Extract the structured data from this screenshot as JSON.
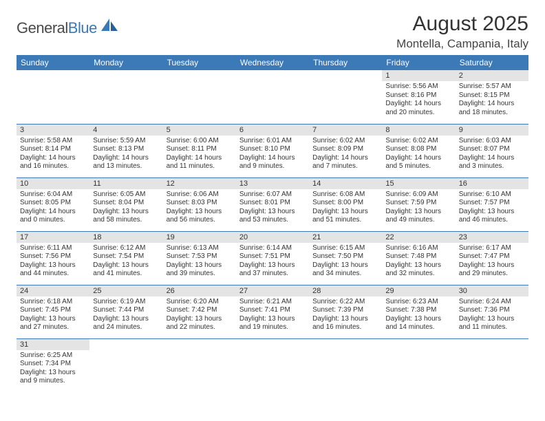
{
  "brand": {
    "part1": "General",
    "part2": "Blue"
  },
  "title": "August 2025",
  "location": "Montella, Campania, Italy",
  "colors": {
    "header_bg": "#3b79b7",
    "header_fg": "#ffffff",
    "daynum_bg": "#e4e4e4",
    "rule": "#3b79b7",
    "text": "#333333",
    "brand_gray": "#4a4a4a",
    "brand_blue": "#3b79b7"
  },
  "day_headers": [
    "Sunday",
    "Monday",
    "Tuesday",
    "Wednesday",
    "Thursday",
    "Friday",
    "Saturday"
  ],
  "weeks": [
    [
      {
        "blank": true
      },
      {
        "blank": true
      },
      {
        "blank": true
      },
      {
        "blank": true
      },
      {
        "blank": true
      },
      {
        "n": "1",
        "sr": "Sunrise: 5:56 AM",
        "ss": "Sunset: 8:16 PM",
        "d1": "Daylight: 14 hours",
        "d2": "and 20 minutes."
      },
      {
        "n": "2",
        "sr": "Sunrise: 5:57 AM",
        "ss": "Sunset: 8:15 PM",
        "d1": "Daylight: 14 hours",
        "d2": "and 18 minutes."
      }
    ],
    [
      {
        "n": "3",
        "sr": "Sunrise: 5:58 AM",
        "ss": "Sunset: 8:14 PM",
        "d1": "Daylight: 14 hours",
        "d2": "and 16 minutes."
      },
      {
        "n": "4",
        "sr": "Sunrise: 5:59 AM",
        "ss": "Sunset: 8:13 PM",
        "d1": "Daylight: 14 hours",
        "d2": "and 13 minutes."
      },
      {
        "n": "5",
        "sr": "Sunrise: 6:00 AM",
        "ss": "Sunset: 8:11 PM",
        "d1": "Daylight: 14 hours",
        "d2": "and 11 minutes."
      },
      {
        "n": "6",
        "sr": "Sunrise: 6:01 AM",
        "ss": "Sunset: 8:10 PM",
        "d1": "Daylight: 14 hours",
        "d2": "and 9 minutes."
      },
      {
        "n": "7",
        "sr": "Sunrise: 6:02 AM",
        "ss": "Sunset: 8:09 PM",
        "d1": "Daylight: 14 hours",
        "d2": "and 7 minutes."
      },
      {
        "n": "8",
        "sr": "Sunrise: 6:02 AM",
        "ss": "Sunset: 8:08 PM",
        "d1": "Daylight: 14 hours",
        "d2": "and 5 minutes."
      },
      {
        "n": "9",
        "sr": "Sunrise: 6:03 AM",
        "ss": "Sunset: 8:07 PM",
        "d1": "Daylight: 14 hours",
        "d2": "and 3 minutes."
      }
    ],
    [
      {
        "n": "10",
        "sr": "Sunrise: 6:04 AM",
        "ss": "Sunset: 8:05 PM",
        "d1": "Daylight: 14 hours",
        "d2": "and 0 minutes."
      },
      {
        "n": "11",
        "sr": "Sunrise: 6:05 AM",
        "ss": "Sunset: 8:04 PM",
        "d1": "Daylight: 13 hours",
        "d2": "and 58 minutes."
      },
      {
        "n": "12",
        "sr": "Sunrise: 6:06 AM",
        "ss": "Sunset: 8:03 PM",
        "d1": "Daylight: 13 hours",
        "d2": "and 56 minutes."
      },
      {
        "n": "13",
        "sr": "Sunrise: 6:07 AM",
        "ss": "Sunset: 8:01 PM",
        "d1": "Daylight: 13 hours",
        "d2": "and 53 minutes."
      },
      {
        "n": "14",
        "sr": "Sunrise: 6:08 AM",
        "ss": "Sunset: 8:00 PM",
        "d1": "Daylight: 13 hours",
        "d2": "and 51 minutes."
      },
      {
        "n": "15",
        "sr": "Sunrise: 6:09 AM",
        "ss": "Sunset: 7:59 PM",
        "d1": "Daylight: 13 hours",
        "d2": "and 49 minutes."
      },
      {
        "n": "16",
        "sr": "Sunrise: 6:10 AM",
        "ss": "Sunset: 7:57 PM",
        "d1": "Daylight: 13 hours",
        "d2": "and 46 minutes."
      }
    ],
    [
      {
        "n": "17",
        "sr": "Sunrise: 6:11 AM",
        "ss": "Sunset: 7:56 PM",
        "d1": "Daylight: 13 hours",
        "d2": "and 44 minutes."
      },
      {
        "n": "18",
        "sr": "Sunrise: 6:12 AM",
        "ss": "Sunset: 7:54 PM",
        "d1": "Daylight: 13 hours",
        "d2": "and 41 minutes."
      },
      {
        "n": "19",
        "sr": "Sunrise: 6:13 AM",
        "ss": "Sunset: 7:53 PM",
        "d1": "Daylight: 13 hours",
        "d2": "and 39 minutes."
      },
      {
        "n": "20",
        "sr": "Sunrise: 6:14 AM",
        "ss": "Sunset: 7:51 PM",
        "d1": "Daylight: 13 hours",
        "d2": "and 37 minutes."
      },
      {
        "n": "21",
        "sr": "Sunrise: 6:15 AM",
        "ss": "Sunset: 7:50 PM",
        "d1": "Daylight: 13 hours",
        "d2": "and 34 minutes."
      },
      {
        "n": "22",
        "sr": "Sunrise: 6:16 AM",
        "ss": "Sunset: 7:48 PM",
        "d1": "Daylight: 13 hours",
        "d2": "and 32 minutes."
      },
      {
        "n": "23",
        "sr": "Sunrise: 6:17 AM",
        "ss": "Sunset: 7:47 PM",
        "d1": "Daylight: 13 hours",
        "d2": "and 29 minutes."
      }
    ],
    [
      {
        "n": "24",
        "sr": "Sunrise: 6:18 AM",
        "ss": "Sunset: 7:45 PM",
        "d1": "Daylight: 13 hours",
        "d2": "and 27 minutes."
      },
      {
        "n": "25",
        "sr": "Sunrise: 6:19 AM",
        "ss": "Sunset: 7:44 PM",
        "d1": "Daylight: 13 hours",
        "d2": "and 24 minutes."
      },
      {
        "n": "26",
        "sr": "Sunrise: 6:20 AM",
        "ss": "Sunset: 7:42 PM",
        "d1": "Daylight: 13 hours",
        "d2": "and 22 minutes."
      },
      {
        "n": "27",
        "sr": "Sunrise: 6:21 AM",
        "ss": "Sunset: 7:41 PM",
        "d1": "Daylight: 13 hours",
        "d2": "and 19 minutes."
      },
      {
        "n": "28",
        "sr": "Sunrise: 6:22 AM",
        "ss": "Sunset: 7:39 PM",
        "d1": "Daylight: 13 hours",
        "d2": "and 16 minutes."
      },
      {
        "n": "29",
        "sr": "Sunrise: 6:23 AM",
        "ss": "Sunset: 7:38 PM",
        "d1": "Daylight: 13 hours",
        "d2": "and 14 minutes."
      },
      {
        "n": "30",
        "sr": "Sunrise: 6:24 AM",
        "ss": "Sunset: 7:36 PM",
        "d1": "Daylight: 13 hours",
        "d2": "and 11 minutes."
      }
    ],
    [
      {
        "n": "31",
        "sr": "Sunrise: 6:25 AM",
        "ss": "Sunset: 7:34 PM",
        "d1": "Daylight: 13 hours",
        "d2": "and 9 minutes."
      },
      {
        "blank": true
      },
      {
        "blank": true
      },
      {
        "blank": true
      },
      {
        "blank": true
      },
      {
        "blank": true
      },
      {
        "blank": true
      }
    ]
  ]
}
